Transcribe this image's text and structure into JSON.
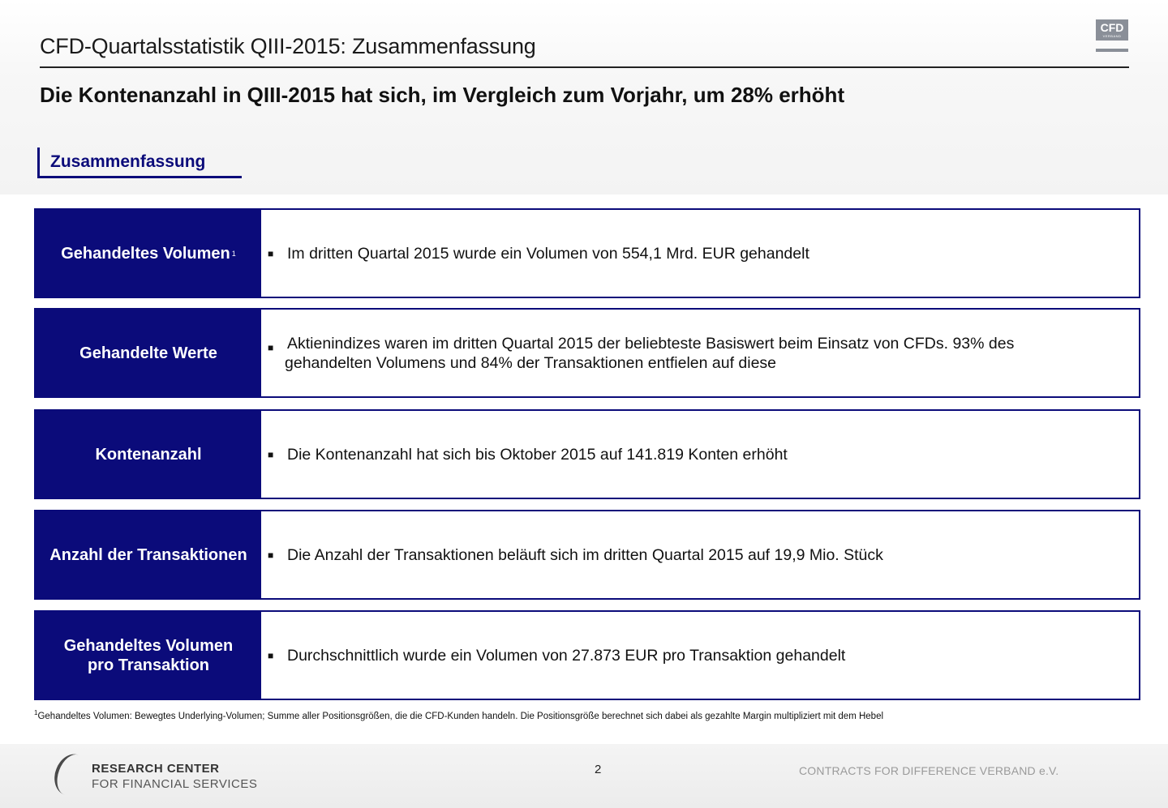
{
  "header": {
    "title": "CFD-Quartalsstatistik QIII-2015: Zusammenfassung",
    "logo_text": "CFD",
    "logo_subtext": "VERBAND"
  },
  "headline": "Die Kontenanzahl in QIII-2015 hat sich, im Vergleich zum Vorjahr, um 28% erhöht",
  "section_title": "Zusammenfassung",
  "rows": [
    {
      "label": "Gehandeltes Volumen",
      "label_sup": "1",
      "text": "Im dritten Quartal 2015 wurde ein Volumen von 554,1 Mrd. EUR gehandelt"
    },
    {
      "label": "Gehandelte Werte",
      "text_line1": "Aktienindizes waren im dritten Quartal 2015 der beliebteste Basiswert beim Einsatz von CFDs. 93% des",
      "text_line2": "gehandelten Volumens und 84% der Transaktionen entfielen auf diese"
    },
    {
      "label": "Kontenanzahl",
      "text": "Die Kontenanzahl hat sich bis Oktober 2015 auf 141.819 Konten erhöht"
    },
    {
      "label": "Anzahl der Transaktionen",
      "text": "Die Anzahl der Transaktionen beläuft sich im dritten Quartal 2015 auf 19,9 Mio. Stück"
    },
    {
      "label_line1": "Gehandeltes Volumen",
      "label_line2": "pro Transaktion",
      "text": "Durchschnittlich wurde ein Volumen von 27.873 EUR pro Transaktion gehandelt"
    }
  ],
  "footnote": {
    "marker": "1",
    "text": "Gehandeltes Volumen: Bewegtes Underlying-Volumen; Summe aller Positionsgrößen, die die CFD-Kunden handeln. Die Positionsgröße berechnet sich dabei als gezahlte Margin multipliziert mit dem Hebel"
  },
  "footer": {
    "brand_line1": "RESEARCH CENTER",
    "brand_line2": "FOR FINANCIAL SERVICES",
    "page_number": "2",
    "organization": "CONTRACTS FOR DIFFERENCE VERBAND e.V."
  },
  "colors": {
    "accent": "#0b0b7a",
    "footer_gray": "#9a9a9a"
  },
  "icons": {
    "bullet": "square-bullet-icon"
  }
}
